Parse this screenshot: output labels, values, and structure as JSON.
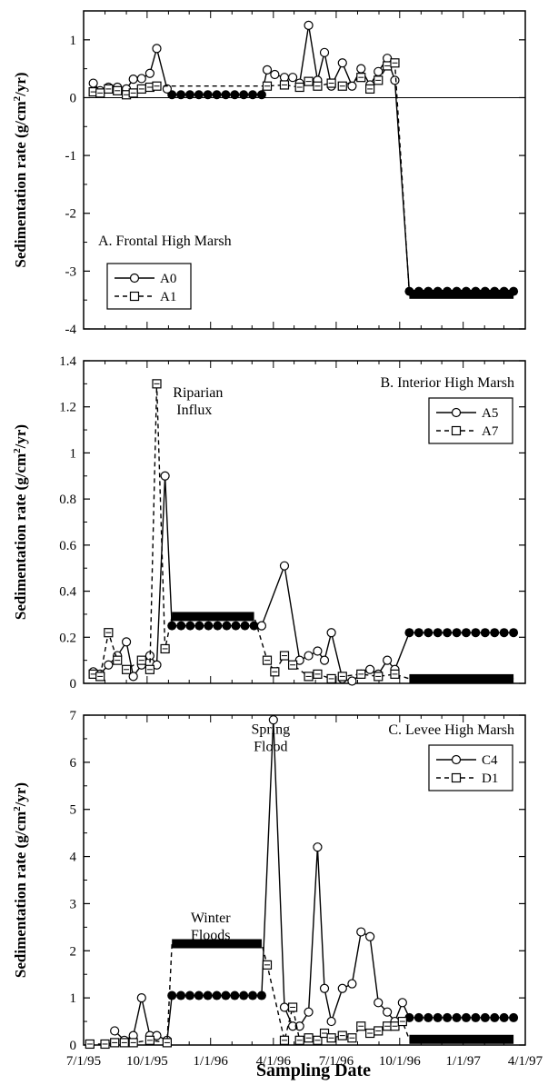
{
  "xlabel": "Sampling Date",
  "x_tick_labels": [
    "7/1/95",
    "10/1/95",
    "1/1/96",
    "4/1/96",
    "7/1/96",
    "10/1/96",
    "1/1/97",
    "4/1/97"
  ],
  "chart_data": [
    {
      "type": "line",
      "panel": "A",
      "title": "A. Frontal High Marsh",
      "ylabel": "Sedimentation rate (g/cm²/yr)",
      "xlim": [
        "1995-07-01",
        "1997-04-01"
      ],
      "ylim": [
        -4,
        1.5
      ],
      "y_ticks": [
        -4,
        -3,
        -2,
        -1,
        0,
        1
      ],
      "zero_line": true,
      "legend": "inside upper-left",
      "series": [
        {
          "name": "A0",
          "style": "solid line, open circles",
          "points": [
            [
              "1995-07-15",
              0.25
            ],
            [
              "1995-07-25",
              0.12
            ],
            [
              "1995-08-06",
              0.18
            ],
            [
              "1995-08-19",
              0.18
            ],
            [
              "1995-09-01",
              0.15
            ],
            [
              "1995-09-11",
              0.32
            ],
            [
              "1995-09-23",
              0.33
            ],
            [
              "1995-10-05",
              0.42
            ],
            [
              "1995-10-15",
              0.85
            ],
            [
              "1995-10-30",
              0.15
            ],
            [
              "1996-03-23",
              0.48
            ],
            [
              "1996-04-03",
              0.4
            ],
            [
              "1996-04-17",
              0.35
            ],
            [
              "1996-04-29",
              0.35
            ],
            [
              "1996-05-09",
              0.25
            ],
            [
              "1996-05-22",
              1.25
            ],
            [
              "1996-06-04",
              0.3
            ],
            [
              "1996-06-14",
              0.78
            ],
            [
              "1996-06-24",
              0.2
            ],
            [
              "1996-07-10",
              0.6
            ],
            [
              "1996-07-24",
              0.2
            ],
            [
              "1996-08-06",
              0.5
            ],
            [
              "1996-08-19",
              0.22
            ],
            [
              "1996-08-31",
              0.45
            ],
            [
              "1996-09-13",
              0.68
            ],
            [
              "1996-09-24",
              0.3
            ]
          ],
          "flat_segments": [
            {
              "from": "1995-11-06",
              "to": "1996-03-15",
              "value": 0.05
            },
            {
              "from": "1996-10-15",
              "to": "1997-03-15",
              "value": -3.35
            }
          ]
        },
        {
          "name": "A1",
          "style": "dashed line, open squares",
          "points": [
            [
              "1995-07-15",
              0.1
            ],
            [
              "1995-07-25",
              0.08
            ],
            [
              "1995-08-06",
              0.15
            ],
            [
              "1995-08-19",
              0.12
            ],
            [
              "1995-09-01",
              0.05
            ],
            [
              "1995-09-11",
              0.08
            ],
            [
              "1995-09-23",
              0.15
            ],
            [
              "1995-10-05",
              0.18
            ],
            [
              "1995-10-15",
              0.2
            ],
            [
              "1996-03-23",
              0.2
            ],
            [
              "1996-04-17",
              0.22
            ],
            [
              "1996-05-09",
              0.18
            ],
            [
              "1996-05-22",
              0.28
            ],
            [
              "1996-06-04",
              0.2
            ],
            [
              "1996-06-24",
              0.25
            ],
            [
              "1996-07-10",
              0.2
            ],
            [
              "1996-08-06",
              0.35
            ],
            [
              "1996-08-19",
              0.15
            ],
            [
              "1996-08-31",
              0.3
            ],
            [
              "1996-09-13",
              0.55
            ],
            [
              "1996-09-24",
              0.6
            ]
          ],
          "flat_segments": [
            {
              "from": "1996-10-15",
              "to": "1997-03-15",
              "value": -3.4
            }
          ]
        }
      ]
    },
    {
      "type": "line",
      "panel": "B",
      "title": "B. Interior High Marsh",
      "ylabel": "Sedimentation rate (g/cm²/yr)",
      "xlim": [
        "1995-07-01",
        "1997-04-01"
      ],
      "ylim": [
        0,
        1.4
      ],
      "y_ticks": [
        0,
        0.2,
        0.4,
        0.6,
        0.8,
        1,
        1.2,
        1.4
      ],
      "legend": "inside upper-right",
      "annotations": [
        {
          "text": [
            "Riparian",
            "Influx"
          ],
          "x": "1995-10-20",
          "y": 1.25
        }
      ],
      "series": [
        {
          "name": "A5",
          "style": "solid line, open circles",
          "points": [
            [
              "1995-07-15",
              0.05
            ],
            [
              "1995-07-25",
              0.04
            ],
            [
              "1995-08-06",
              0.08
            ],
            [
              "1995-08-19",
              0.12
            ],
            [
              "1995-09-01",
              0.18
            ],
            [
              "1995-09-11",
              0.03
            ],
            [
              "1995-09-23",
              0.08
            ],
            [
              "1995-10-05",
              0.12
            ],
            [
              "1995-10-15",
              0.08
            ],
            [
              "1995-10-27",
              0.9
            ],
            [
              "1996-03-15",
              0.25
            ],
            [
              "1996-04-17",
              0.51
            ],
            [
              "1996-05-09",
              0.1
            ],
            [
              "1996-05-22",
              0.12
            ],
            [
              "1996-06-04",
              0.14
            ],
            [
              "1996-06-14",
              0.1
            ],
            [
              "1996-06-24",
              0.22
            ],
            [
              "1996-07-10",
              0.02
            ],
            [
              "1996-07-24",
              0.01
            ],
            [
              "1996-08-06",
              0.04
            ],
            [
              "1996-08-19",
              0.06
            ],
            [
              "1996-08-31",
              0.04
            ],
            [
              "1996-09-13",
              0.1
            ],
            [
              "1996-09-24",
              0.06
            ]
          ],
          "flat_segments": [
            {
              "from": "1995-11-06",
              "to": "1996-03-04",
              "value": 0.25
            },
            {
              "from": "1996-10-15",
              "to": "1997-03-15",
              "value": 0.22
            }
          ]
        },
        {
          "name": "A7",
          "style": "dashed line, open squares",
          "points": [
            [
              "1995-07-15",
              0.04
            ],
            [
              "1995-07-25",
              0.03
            ],
            [
              "1995-08-06",
              0.22
            ],
            [
              "1995-08-19",
              0.1
            ],
            [
              "1995-09-01",
              0.06
            ],
            [
              "1995-09-23",
              0.1
            ],
            [
              "1995-10-05",
              0.06
            ],
            [
              "1995-10-15",
              1.3
            ],
            [
              "1995-10-27",
              0.15
            ],
            [
              "1996-03-23",
              0.1
            ],
            [
              "1996-04-03",
              0.05
            ],
            [
              "1996-04-17",
              0.12
            ],
            [
              "1996-04-29",
              0.08
            ],
            [
              "1996-05-22",
              0.03
            ],
            [
              "1996-06-04",
              0.04
            ],
            [
              "1996-06-24",
              0.02
            ],
            [
              "1996-07-10",
              0.03
            ],
            [
              "1996-08-06",
              0.04
            ],
            [
              "1996-08-31",
              0.03
            ],
            [
              "1996-09-24",
              0.04
            ]
          ],
          "flat_segments": [
            {
              "from": "1995-11-06",
              "to": "1996-03-04",
              "value": 0.29
            },
            {
              "from": "1996-10-15",
              "to": "1997-03-15",
              "value": 0.02
            }
          ]
        }
      ]
    },
    {
      "type": "line",
      "panel": "C",
      "title": "C. Levee High Marsh",
      "ylabel": "Sedimentation rate (g/cm²/yr)",
      "xlabel": "Sampling Date",
      "xlim": [
        "1995-07-01",
        "1997-04-01"
      ],
      "ylim": [
        0,
        7
      ],
      "y_ticks": [
        0,
        1,
        2,
        3,
        4,
        5,
        6,
        7
      ],
      "legend": "inside upper-right",
      "annotations": [
        {
          "text": [
            "Spring",
            "Flood"
          ],
          "x": "1996-03-28",
          "y": 6.6
        },
        {
          "text": [
            "Winter",
            "Floods"
          ],
          "x": "1996-01-01",
          "y": 2.6
        }
      ],
      "series": [
        {
          "name": "C4",
          "style": "solid line, open circles",
          "points": [
            [
              "1995-08-15",
              0.3
            ],
            [
              "1995-08-29",
              0.1
            ],
            [
              "1995-09-11",
              0.2
            ],
            [
              "1995-09-23",
              1.0
            ],
            [
              "1995-10-05",
              0.2
            ],
            [
              "1995-10-15",
              0.2
            ],
            [
              "1995-10-30",
              0.1
            ],
            [
              "1996-04-01",
              6.9
            ],
            [
              "1996-04-17",
              0.8
            ],
            [
              "1996-04-29",
              0.4
            ],
            [
              "1996-05-09",
              0.4
            ],
            [
              "1996-05-22",
              0.7
            ],
            [
              "1996-06-04",
              4.2
            ],
            [
              "1996-06-14",
              1.2
            ],
            [
              "1996-06-24",
              0.5
            ],
            [
              "1996-07-10",
              1.2
            ],
            [
              "1996-07-24",
              1.3
            ],
            [
              "1996-08-06",
              2.4
            ],
            [
              "1996-08-19",
              2.3
            ],
            [
              "1996-08-31",
              0.9
            ],
            [
              "1996-09-13",
              0.7
            ],
            [
              "1996-09-24",
              0.5
            ],
            [
              "1996-10-05",
              0.9
            ]
          ],
          "flat_segments": [
            {
              "from": "1995-11-06",
              "to": "1996-03-15",
              "value": 1.05
            },
            {
              "from": "1996-10-15",
              "to": "1997-03-15",
              "value": 0.58
            }
          ]
        },
        {
          "name": "D1",
          "style": "dashed line, open squares",
          "points": [
            [
              "1995-07-10",
              0.02
            ],
            [
              "1995-08-01",
              0.02
            ],
            [
              "1995-08-15",
              0.05
            ],
            [
              "1995-08-29",
              0.05
            ],
            [
              "1995-09-11",
              0.05
            ],
            [
              "1995-10-05",
              0.1
            ],
            [
              "1995-10-30",
              0.05
            ],
            [
              "1996-03-23",
              1.7
            ],
            [
              "1996-04-17",
              0.1
            ],
            [
              "1996-04-29",
              0.8
            ],
            [
              "1996-05-09",
              0.1
            ],
            [
              "1996-05-22",
              0.15
            ],
            [
              "1996-06-04",
              0.1
            ],
            [
              "1996-06-14",
              0.25
            ],
            [
              "1996-06-24",
              0.15
            ],
            [
              "1996-07-10",
              0.2
            ],
            [
              "1996-07-24",
              0.15
            ],
            [
              "1996-08-06",
              0.4
            ],
            [
              "1996-08-19",
              0.25
            ],
            [
              "1996-08-31",
              0.3
            ],
            [
              "1996-09-13",
              0.4
            ],
            [
              "1996-09-24",
              0.4
            ],
            [
              "1996-10-05",
              0.5
            ]
          ],
          "flat_segments": [
            {
              "from": "1995-11-06",
              "to": "1996-03-15",
              "value": 2.15
            },
            {
              "from": "1996-10-15",
              "to": "1997-03-15",
              "value": 0.12
            }
          ]
        }
      ]
    }
  ]
}
